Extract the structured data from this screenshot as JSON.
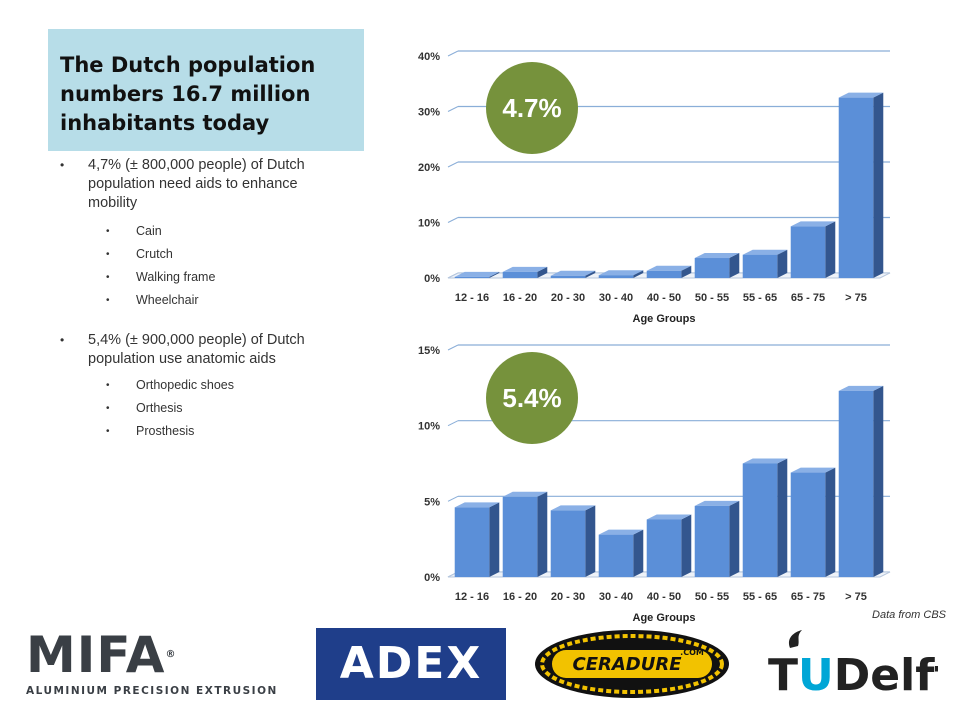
{
  "title": "The Dutch population numbers 16.7 million inhabitants today",
  "title_lines": [
    "The Dutch population",
    "numbers 16.7 million",
    "inhabitants today"
  ],
  "bullets": [
    {
      "lines": [
        "4,7% (± 800,000 people) of Dutch",
        "population need aids to enhance",
        "mobility"
      ],
      "sub": [
        "Cain",
        "Crutch",
        "Walking frame",
        "Wheelchair"
      ]
    },
    {
      "lines": [
        "5,4% (± 900,000 people) of Dutch",
        "population use anatomic aids"
      ],
      "sub": [
        "Orthopedic shoes",
        "Orthesis",
        "Prosthesis"
      ]
    }
  ],
  "note": "Data from CBS",
  "colors": {
    "bar_front": "#5b8fd8",
    "bar_side": "#33568e",
    "bar_top": "#8ab0e6",
    "circle": "#76923c",
    "title_bg": "#b7dde8"
  },
  "logos": {
    "mifa": "MIFA",
    "mifa_sub": "ALUMINIUM PRECISION EXTRUSION",
    "adex": "ADEX",
    "ceradure": "CERADURE",
    "ceradure_suffix": ".COM",
    "tudelft": "TUDelft"
  },
  "chart_data": [
    {
      "type": "bar",
      "categories": [
        "12 - 16",
        "16 - 20",
        "20 - 30",
        "30 - 40",
        "40 - 50",
        "50 - 55",
        "55 - 65",
        "65 - 75",
        "> 75"
      ],
      "values": [
        0.2,
        1.1,
        0.4,
        0.5,
        1.3,
        3.6,
        4.2,
        9.3,
        32.5
      ],
      "xlabel": "Age Groups",
      "ylabel": "",
      "ylim": [
        0,
        40
      ],
      "yticks": [
        0,
        10,
        20,
        30,
        40
      ],
      "ytick_labels": [
        "0%",
        "10%",
        "20%",
        "30%",
        "40%"
      ],
      "annotation": "4.7%",
      "grid": true
    },
    {
      "type": "bar",
      "categories": [
        "12 - 16",
        "16 - 20",
        "20 - 30",
        "30 - 40",
        "40 - 50",
        "50 - 55",
        "55 - 65",
        "65 - 75",
        "> 75"
      ],
      "values": [
        4.6,
        5.3,
        4.4,
        2.8,
        3.8,
        4.7,
        7.5,
        6.9,
        12.3
      ],
      "xlabel": "Age Groups",
      "ylabel": "",
      "ylim": [
        0,
        15
      ],
      "yticks": [
        0,
        5,
        10,
        15
      ],
      "ytick_labels": [
        "0%",
        "5%",
        "10%",
        "15%"
      ],
      "annotation": "5.4%",
      "grid": true
    }
  ]
}
